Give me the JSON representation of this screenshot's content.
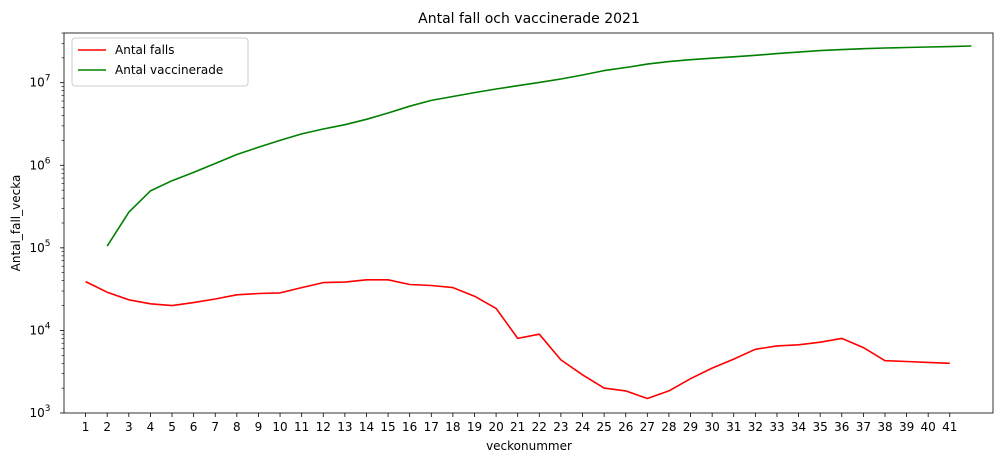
{
  "chart_data": {
    "type": "line",
    "title": "Antal fall och vaccinerade 2021",
    "xlabel": "veckonummer",
    "ylabel": "Antal_fall_vecka",
    "yscale": "log",
    "ylim": [
      1000,
      40000000
    ],
    "xlim": [
      0,
      43
    ],
    "grid": false,
    "legend_position": "top-left",
    "x_ticks": [
      1,
      2,
      3,
      4,
      5,
      6,
      7,
      8,
      9,
      10,
      11,
      12,
      13,
      14,
      15,
      16,
      17,
      18,
      19,
      20,
      21,
      22,
      23,
      24,
      25,
      26,
      27,
      28,
      29,
      30,
      31,
      32,
      33,
      34,
      35,
      36,
      37,
      38,
      39,
      40,
      41
    ],
    "y_ticks": [
      {
        "value": 1000,
        "base": "10",
        "exp": "3"
      },
      {
        "value": 10000,
        "base": "10",
        "exp": "4"
      },
      {
        "value": 100000,
        "base": "10",
        "exp": "5"
      },
      {
        "value": 1000000,
        "base": "10",
        "exp": "6"
      },
      {
        "value": 10000000,
        "base": "10",
        "exp": "7"
      }
    ],
    "series": [
      {
        "name": "Antal falls",
        "color": "#ff0000",
        "x": [
          1,
          2,
          3,
          4,
          5,
          6,
          7,
          8,
          9,
          10,
          11,
          12,
          13,
          14,
          15,
          16,
          17,
          18,
          19,
          20,
          21,
          22,
          23,
          24,
          25,
          26,
          27,
          28,
          29,
          30,
          31,
          32,
          33,
          34,
          35,
          36,
          37,
          38,
          39,
          40,
          41
        ],
        "values": [
          39000,
          29000,
          23500,
          21000,
          20000,
          21700,
          24000,
          27000,
          28000,
          28500,
          33000,
          38000,
          38500,
          41000,
          41000,
          36000,
          35000,
          33000,
          26000,
          18500,
          8000,
          9000,
          4400,
          2900,
          2000,
          1850,
          1500,
          1850,
          2600,
          3500,
          4500,
          5900,
          6500,
          6700,
          7200,
          8000,
          6200,
          4300,
          4200,
          4100,
          4000
        ]
      },
      {
        "name": "Antal vaccinerade",
        "color": "#008000",
        "x": [
          2,
          3,
          4,
          5,
          6,
          7,
          8,
          9,
          10,
          11,
          12,
          13,
          14,
          15,
          16,
          17,
          18,
          19,
          20,
          21,
          22,
          23,
          24,
          25,
          26,
          27,
          28,
          29,
          30,
          31,
          32,
          33,
          34,
          35,
          36,
          37,
          38,
          39,
          40,
          41,
          42
        ],
        "values": [
          105000,
          270000,
          490000,
          650000,
          820000,
          1050000,
          1350000,
          1650000,
          2000000,
          2400000,
          2750000,
          3100000,
          3600000,
          4300000,
          5200000,
          6100000,
          6800000,
          7600000,
          8400000,
          9200000,
          10100000,
          11100000,
          12400000,
          14000000,
          15300000,
          16800000,
          18000000,
          19000000,
          19800000,
          20600000,
          21500000,
          22500000,
          23500000,
          24500000,
          25200000,
          25800000,
          26300000,
          26700000,
          27100000,
          27400000,
          27800000
        ]
      }
    ]
  }
}
